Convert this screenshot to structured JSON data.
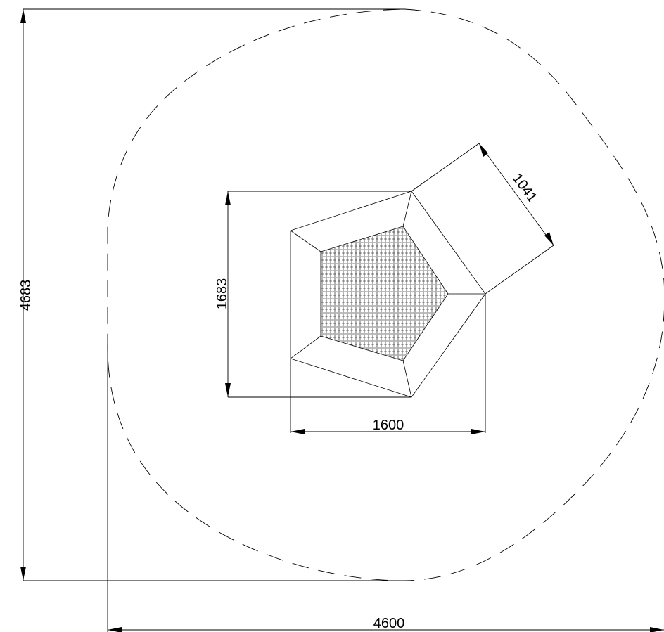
{
  "dimensions": {
    "total_height": "4683",
    "total_width": "4600",
    "inner_height": "1683",
    "inner_width": "1600",
    "side_length": "1041"
  }
}
